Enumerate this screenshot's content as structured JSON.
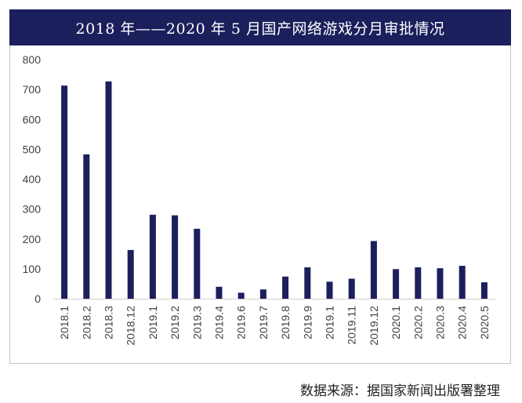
{
  "chart_data": {
    "type": "bar",
    "title": "2018 年——2020 年 5 月国产网络游戏分月审批情况",
    "categories": [
      "2018.1",
      "2018.2",
      "2018.3",
      "2018.12",
      "2019.1",
      "2019.2",
      "2019.3",
      "2019.4",
      "2019.6",
      "2019.7",
      "2019.8",
      "2019.9",
      "2019.1",
      "2019.11",
      "2019.12",
      "2020.1",
      "2020.2",
      "2020.3",
      "2020.4",
      "2020.5"
    ],
    "values": [
      713,
      483,
      727,
      163,
      281,
      279,
      234,
      40,
      20,
      31,
      74,
      105,
      57,
      67,
      193,
      99,
      105,
      102,
      110,
      55
    ],
    "ylim": [
      0,
      800
    ],
    "yticks": [
      0,
      100,
      200,
      300,
      400,
      500,
      600,
      700,
      800
    ],
    "xlabel": "",
    "ylabel": "",
    "grid": false,
    "legend": "none",
    "bar_color": "#1b1f5c"
  },
  "source": "数据来源：据国家新闻出版署整理"
}
